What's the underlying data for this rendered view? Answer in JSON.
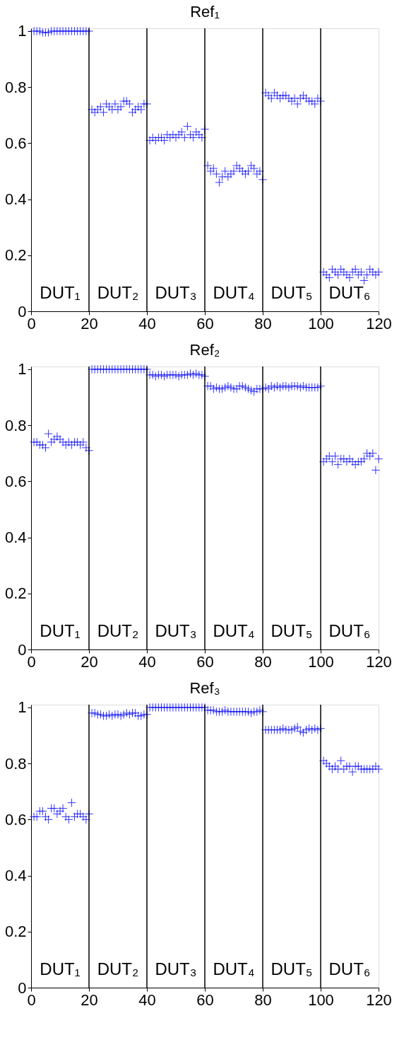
{
  "chart_data": [
    {
      "type": "scatter",
      "title": "Ref₁",
      "xlim": [
        0,
        120
      ],
      "ylim": [
        0,
        1.01
      ],
      "xticks": [
        0,
        20,
        40,
        60,
        80,
        100,
        120
      ],
      "yticks": [
        0,
        0.2,
        0.4,
        0.6,
        0.8,
        1
      ],
      "grid": false,
      "marker": "cross",
      "x": [
        1,
        2,
        3,
        4,
        5,
        6,
        7,
        8,
        9,
        10,
        11,
        12,
        13,
        14,
        15,
        16,
        17,
        18,
        19,
        20,
        21,
        22,
        23,
        24,
        25,
        26,
        27,
        28,
        29,
        30,
        31,
        32,
        33,
        34,
        35,
        36,
        37,
        38,
        39,
        40,
        41,
        42,
        43,
        44,
        45,
        46,
        47,
        48,
        49,
        50,
        51,
        52,
        53,
        54,
        55,
        56,
        57,
        58,
        59,
        60,
        61,
        62,
        63,
        64,
        65,
        66,
        67,
        68,
        69,
        70,
        71,
        72,
        73,
        74,
        75,
        76,
        77,
        78,
        79,
        80,
        81,
        82,
        83,
        84,
        85,
        86,
        87,
        88,
        89,
        90,
        91,
        92,
        93,
        94,
        95,
        96,
        97,
        98,
        99,
        100,
        101,
        102,
        103,
        104,
        105,
        106,
        107,
        108,
        109,
        110,
        111,
        112,
        113,
        114,
        115,
        116,
        117,
        118,
        119,
        120
      ],
      "series": [
        {
          "color": "#0000ff",
          "values": [
            1,
            1,
            1,
            0.995,
            0.995,
            0.995,
            1,
            1,
            1,
            1,
            1,
            1,
            1,
            1,
            1,
            1,
            1,
            1,
            1,
            1,
            0.72,
            0.71,
            0.72,
            0.73,
            0.71,
            0.74,
            0.73,
            0.72,
            0.74,
            0.72,
            0.73,
            0.75,
            0.75,
            0.74,
            0.71,
            0.72,
            0.73,
            0.72,
            0.74,
            0.74,
            0.61,
            0.62,
            0.61,
            0.62,
            0.62,
            0.61,
            0.63,
            0.62,
            0.63,
            0.62,
            0.63,
            0.64,
            0.62,
            0.66,
            0.63,
            0.62,
            0.64,
            0.63,
            0.62,
            0.65,
            0.52,
            0.5,
            0.51,
            0.49,
            0.46,
            0.48,
            0.5,
            0.48,
            0.49,
            0.5,
            0.52,
            0.51,
            0.5,
            0.49,
            0.5,
            0.52,
            0.51,
            0.49,
            0.5,
            0.47,
            0.78,
            0.77,
            0.76,
            0.78,
            0.77,
            0.76,
            0.77,
            0.77,
            0.76,
            0.75,
            0.76,
            0.74,
            0.76,
            0.77,
            0.76,
            0.75,
            0.75,
            0.74,
            0.76,
            0.75,
            0.14,
            0.13,
            0.12,
            0.15,
            0.14,
            0.13,
            0.15,
            0.14,
            0.13,
            0.12,
            0.14,
            0.15,
            0.13,
            0.14,
            0.11,
            0.13,
            0.15,
            0.14,
            0.13,
            0.14
          ]
        }
      ],
      "ref_lines": [
        {
          "axis": "x",
          "value": 20,
          "color": "#000000"
        },
        {
          "axis": "x",
          "value": 40,
          "color": "#000000"
        },
        {
          "axis": "x",
          "value": 60,
          "color": "#000000"
        },
        {
          "axis": "x",
          "value": 80,
          "color": "#000000"
        },
        {
          "axis": "x",
          "value": 100,
          "color": "#000000"
        }
      ],
      "annotations": [
        "DUT₁",
        "DUT₂",
        "DUT₃",
        "DUT₄",
        "DUT₅",
        "DUT₆"
      ]
    },
    {
      "type": "scatter",
      "title": "Ref₂",
      "xlim": [
        0,
        120
      ],
      "ylim": [
        0,
        1.01
      ],
      "xticks": [
        0,
        20,
        40,
        60,
        80,
        100,
        120
      ],
      "yticks": [
        0,
        0.2,
        0.4,
        0.6,
        0.8,
        1
      ],
      "grid": false,
      "marker": "cross",
      "x": [
        1,
        2,
        3,
        4,
        5,
        6,
        7,
        8,
        9,
        10,
        11,
        12,
        13,
        14,
        15,
        16,
        17,
        18,
        19,
        20,
        21,
        22,
        23,
        24,
        25,
        26,
        27,
        28,
        29,
        30,
        31,
        32,
        33,
        34,
        35,
        36,
        37,
        38,
        39,
        40,
        41,
        42,
        43,
        44,
        45,
        46,
        47,
        48,
        49,
        50,
        51,
        52,
        53,
        54,
        55,
        56,
        57,
        58,
        59,
        60,
        61,
        62,
        63,
        64,
        65,
        66,
        67,
        68,
        69,
        70,
        71,
        72,
        73,
        74,
        75,
        76,
        77,
        78,
        79,
        80,
        81,
        82,
        83,
        84,
        85,
        86,
        87,
        88,
        89,
        90,
        91,
        92,
        93,
        94,
        95,
        96,
        97,
        98,
        99,
        100,
        101,
        102,
        103,
        104,
        105,
        106,
        107,
        108,
        109,
        110,
        111,
        112,
        113,
        114,
        115,
        116,
        117,
        118,
        119,
        120
      ],
      "series": [
        {
          "color": "#0000ff",
          "values": [
            0.74,
            0.74,
            0.73,
            0.73,
            0.72,
            0.77,
            0.74,
            0.75,
            0.76,
            0.75,
            0.74,
            0.73,
            0.74,
            0.73,
            0.74,
            0.74,
            0.73,
            0.74,
            0.72,
            0.71,
            1,
            1,
            1,
            1,
            1,
            1,
            1,
            1,
            1,
            1,
            1,
            1,
            1,
            1,
            1,
            1,
            1,
            1,
            1,
            1,
            0.98,
            0.98,
            0.975,
            0.98,
            0.98,
            0.975,
            0.98,
            0.98,
            0.98,
            0.98,
            0.975,
            0.98,
            0.98,
            0.98,
            0.985,
            0.98,
            0.985,
            0.98,
            0.98,
            0.975,
            0.94,
            0.94,
            0.93,
            0.935,
            0.93,
            0.93,
            0.935,
            0.94,
            0.935,
            0.93,
            0.93,
            0.94,
            0.94,
            0.935,
            0.93,
            0.925,
            0.92,
            0.93,
            0.93,
            0.93,
            0.935,
            0.93,
            0.94,
            0.935,
            0.94,
            0.935,
            0.94,
            0.94,
            0.935,
            0.94,
            0.94,
            0.94,
            0.935,
            0.94,
            0.935,
            0.935,
            0.935,
            0.935,
            0.935,
            0.94,
            0.67,
            0.68,
            0.69,
            0.67,
            0.69,
            0.66,
            0.68,
            0.68,
            0.67,
            0.68,
            0.67,
            0.66,
            0.67,
            0.67,
            0.68,
            0.7,
            0.69,
            0.7,
            0.64,
            0.68
          ]
        }
      ],
      "ref_lines": [
        {
          "axis": "x",
          "value": 20,
          "color": "#000000"
        },
        {
          "axis": "x",
          "value": 40,
          "color": "#000000"
        },
        {
          "axis": "x",
          "value": 60,
          "color": "#000000"
        },
        {
          "axis": "x",
          "value": 80,
          "color": "#000000"
        },
        {
          "axis": "x",
          "value": 100,
          "color": "#000000"
        }
      ],
      "annotations": [
        "DUT₁",
        "DUT₂",
        "DUT₃",
        "DUT₄",
        "DUT₅",
        "DUT₆"
      ]
    },
    {
      "type": "scatter",
      "title": "Ref₃",
      "xlim": [
        0,
        120
      ],
      "ylim": [
        0,
        1.01
      ],
      "xticks": [
        0,
        20,
        40,
        60,
        80,
        100,
        120
      ],
      "yticks": [
        0,
        0.2,
        0.4,
        0.6,
        0.8,
        1
      ],
      "grid": false,
      "marker": "cross",
      "x": [
        1,
        2,
        3,
        4,
        5,
        6,
        7,
        8,
        9,
        10,
        11,
        12,
        13,
        14,
        15,
        16,
        17,
        18,
        19,
        20,
        21,
        22,
        23,
        24,
        25,
        26,
        27,
        28,
        29,
        30,
        31,
        32,
        33,
        34,
        35,
        36,
        37,
        38,
        39,
        40,
        41,
        42,
        43,
        44,
        45,
        46,
        47,
        48,
        49,
        50,
        51,
        52,
        53,
        54,
        55,
        56,
        57,
        58,
        59,
        60,
        61,
        62,
        63,
        64,
        65,
        66,
        67,
        68,
        69,
        70,
        71,
        72,
        73,
        74,
        75,
        76,
        77,
        78,
        79,
        80,
        81,
        82,
        83,
        84,
        85,
        86,
        87,
        88,
        89,
        90,
        91,
        92,
        93,
        94,
        95,
        96,
        97,
        98,
        99,
        100,
        101,
        102,
        103,
        104,
        105,
        106,
        107,
        108,
        109,
        110,
        111,
        112,
        113,
        114,
        115,
        116,
        117,
        118,
        119,
        120
      ],
      "series": [
        {
          "color": "#0000ff",
          "values": [
            0.61,
            0.61,
            0.63,
            0.63,
            0.61,
            0.6,
            0.64,
            0.64,
            0.62,
            0.63,
            0.64,
            0.61,
            0.6,
            0.66,
            0.61,
            0.62,
            0.62,
            0.61,
            0.6,
            0.62,
            0.98,
            0.98,
            0.975,
            0.975,
            0.97,
            0.97,
            0.975,
            0.97,
            0.975,
            0.975,
            0.97,
            0.975,
            0.98,
            0.975,
            0.98,
            0.98,
            0.97,
            0.97,
            0.975,
            0.975,
            1,
            1,
            1,
            1,
            1,
            1,
            1,
            1,
            1,
            1,
            1,
            1,
            1,
            1,
            1,
            1,
            1,
            1,
            1,
            1,
            0.99,
            0.99,
            0.99,
            0.985,
            0.985,
            0.985,
            0.99,
            0.985,
            0.985,
            0.985,
            0.985,
            0.985,
            0.985,
            0.985,
            0.985,
            0.98,
            0.985,
            0.985,
            0.99,
            0.985,
            0.92,
            0.92,
            0.92,
            0.92,
            0.92,
            0.92,
            0.925,
            0.92,
            0.92,
            0.92,
            0.925,
            0.93,
            0.915,
            0.91,
            0.92,
            0.925,
            0.92,
            0.925,
            0.92,
            0.925,
            0.81,
            0.8,
            0.79,
            0.78,
            0.79,
            0.78,
            0.81,
            0.78,
            0.79,
            0.79,
            0.77,
            0.79,
            0.79,
            0.78,
            0.78,
            0.78,
            0.78,
            0.78,
            0.79,
            0.78
          ]
        }
      ],
      "ref_lines": [
        {
          "axis": "x",
          "value": 20,
          "color": "#000000"
        },
        {
          "axis": "x",
          "value": 40,
          "color": "#000000"
        },
        {
          "axis": "x",
          "value": 60,
          "color": "#000000"
        },
        {
          "axis": "x",
          "value": 80,
          "color": "#000000"
        },
        {
          "axis": "x",
          "value": 100,
          "color": "#000000"
        }
      ],
      "annotations": [
        "DUT₁",
        "DUT₂",
        "DUT₃",
        "DUT₄",
        "DUT₅",
        "DUT₆"
      ]
    }
  ]
}
